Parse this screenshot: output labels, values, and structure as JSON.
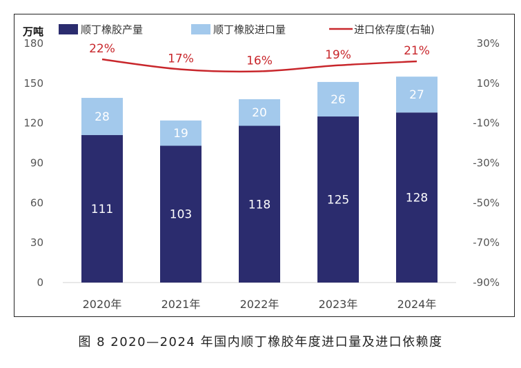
{
  "chart_data": {
    "type": "bar",
    "stacked": true,
    "caption": "图 8  2020—2024 年国内顺丁橡胶年度进口量及进口依赖度",
    "unit_left": "万吨",
    "categories": [
      "2020年",
      "2021年",
      "2022年",
      "2023年",
      "2024年"
    ],
    "series": [
      {
        "name": "顺丁橡胶产量",
        "values": [
          111,
          103,
          118,
          125,
          128
        ],
        "color": "#2b2c6e"
      },
      {
        "name": "顺丁橡胶进口量",
        "values": [
          28,
          19,
          20,
          26,
          27
        ],
        "color": "#a3c9ec"
      }
    ],
    "line_series": {
      "name": "进口依存度(右轴)",
      "values": [
        22,
        17,
        16,
        19,
        21
      ],
      "labels": [
        "22%",
        "17%",
        "16%",
        "19%",
        "21%"
      ],
      "color": "#c8262b"
    },
    "ylim": [
      0,
      180
    ],
    "yticks": [
      "0",
      "30",
      "60",
      "90",
      "120",
      "150",
      "180"
    ],
    "y2lim": [
      -90,
      30
    ],
    "y2ticks": [
      "-90%",
      "-70%",
      "-50%",
      "-30%",
      "-10%",
      "10%",
      "30%"
    ],
    "grid": false,
    "legend_position": "top"
  }
}
